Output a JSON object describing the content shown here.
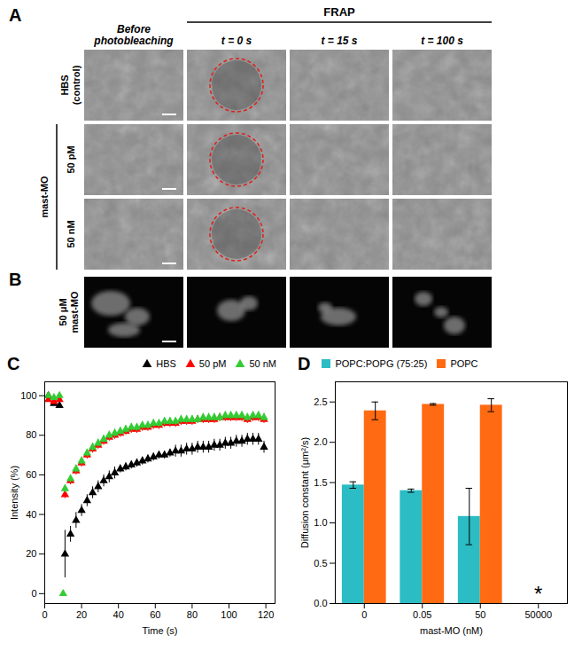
{
  "image_panels": [
    {
      "panel": "A",
      "header": "FRAP",
      "columns": [
        "Before photobleaching",
        "t = 0 s",
        "t = 15 s",
        "t = 100 s"
      ],
      "row_group": "mast-MO",
      "rows": [
        "HBS (control)",
        "50 pM",
        "50 nM"
      ]
    },
    {
      "panel": "B",
      "rows": [
        "50 μM mast-MO"
      ]
    }
  ],
  "chart_data": [
    {
      "panel": "C",
      "type": "scatter",
      "xlabel": "Time (s)",
      "ylabel": "Intensity (%)",
      "x": [
        2,
        5,
        8,
        10,
        11,
        14,
        17,
        20,
        23,
        26,
        29,
        32,
        35,
        38,
        41,
        44,
        47,
        50,
        53,
        56,
        59,
        62,
        65,
        68,
        71,
        74,
        77,
        80,
        83,
        86,
        89,
        92,
        95,
        98,
        101,
        104,
        107,
        110,
        113,
        116,
        119
      ],
      "series": [
        {
          "name": "HBS",
          "color": "#000000",
          "marker": "triangle",
          "values": [
            100,
            96,
            95,
            null,
            20,
            30,
            37,
            42,
            47,
            51,
            54,
            57,
            59,
            61,
            63,
            64,
            65,
            66,
            67,
            68,
            69,
            70,
            70,
            71,
            72,
            72,
            73,
            73,
            74,
            74,
            74,
            75,
            75,
            76,
            76,
            77,
            77,
            78,
            78,
            78,
            74
          ],
          "errors": [
            1,
            1,
            1,
            null,
            12,
            4,
            4,
            3,
            3,
            3,
            3,
            3,
            3,
            3,
            2,
            2,
            2,
            2,
            2,
            2,
            2,
            2,
            2,
            2,
            3,
            3,
            3,
            3,
            3,
            3,
            3,
            3,
            3,
            3,
            3,
            3,
            3,
            3,
            3,
            3,
            3
          ]
        },
        {
          "name": "50 pM",
          "color": "#ff0000",
          "marker": "triangle",
          "values": [
            98,
            97,
            98,
            null,
            50,
            57,
            62,
            66,
            70,
            73,
            75,
            77,
            79,
            80,
            81,
            82,
            83,
            83,
            84,
            84,
            85,
            85,
            86,
            86,
            86,
            87,
            87,
            87,
            88,
            88,
            88,
            88,
            89,
            89,
            89,
            89,
            89,
            88,
            89,
            89,
            88
          ],
          "errors": [
            1,
            1,
            1,
            null,
            2,
            2,
            2,
            2,
            2,
            2,
            2,
            2,
            2,
            2,
            2,
            2,
            2,
            2,
            2,
            2,
            2,
            2,
            2,
            2,
            2,
            2,
            2,
            2,
            2,
            2,
            2,
            2,
            2,
            2,
            2,
            2,
            2,
            2,
            2,
            2,
            2
          ]
        },
        {
          "name": "50 nM",
          "color": "#33cc33",
          "marker": "triangle",
          "values": [
            100,
            99,
            100,
            0,
            53,
            58,
            63,
            67,
            71,
            74,
            76,
            78,
            80,
            81,
            82,
            83,
            84,
            84,
            85,
            85,
            86,
            86,
            87,
            87,
            87,
            88,
            88,
            88,
            88,
            89,
            89,
            89,
            89,
            90,
            90,
            90,
            90,
            89,
            90,
            90,
            89
          ],
          "errors": [
            1,
            1,
            1,
            0,
            2,
            2,
            2,
            2,
            2,
            2,
            2,
            2,
            2,
            2,
            2,
            2,
            2,
            2,
            2,
            2,
            2,
            2,
            2,
            2,
            2,
            2,
            2,
            2,
            2,
            2,
            2,
            2,
            2,
            2,
            2,
            2,
            2,
            2,
            2,
            2,
            2
          ]
        }
      ],
      "xlim": [
        0,
        125
      ],
      "xticks": [
        0,
        20,
        40,
        60,
        80,
        100,
        120
      ],
      "ylim": [
        -5,
        107
      ],
      "yticks": [
        0,
        20,
        40,
        60,
        80,
        100
      ],
      "grid": false,
      "legend": "top-right"
    },
    {
      "panel": "D",
      "type": "bar",
      "xlabel": "mast-MO (nM)",
      "ylabel": "Diffusion constant (μm²/s)",
      "categories": [
        "0",
        "0.05",
        "50",
        "50000"
      ],
      "series": [
        {
          "name": "POPC:POPG (75:25)",
          "color": "#2bbcc4",
          "values": [
            1.47,
            1.4,
            1.08,
            null
          ],
          "errors": [
            0.04,
            0.02,
            0.35,
            null
          ]
        },
        {
          "name": "POPC",
          "color": "#ff6a13",
          "values": [
            2.39,
            2.47,
            2.46,
            null
          ],
          "errors": [
            0.11,
            0.01,
            0.08,
            null
          ]
        }
      ],
      "ylim": [
        0,
        2.75
      ],
      "yticks": [
        {
          "value": 0,
          "label": "0.0"
        },
        0.5,
        {
          "value": 1,
          "label": "1.0"
        },
        1.5,
        {
          "value": 2,
          "label": "2.0"
        },
        2.5
      ],
      "annotations": [
        {
          "text": "*",
          "category": "50000",
          "y": 0
        }
      ],
      "grid": false,
      "legend": "top-left"
    }
  ]
}
